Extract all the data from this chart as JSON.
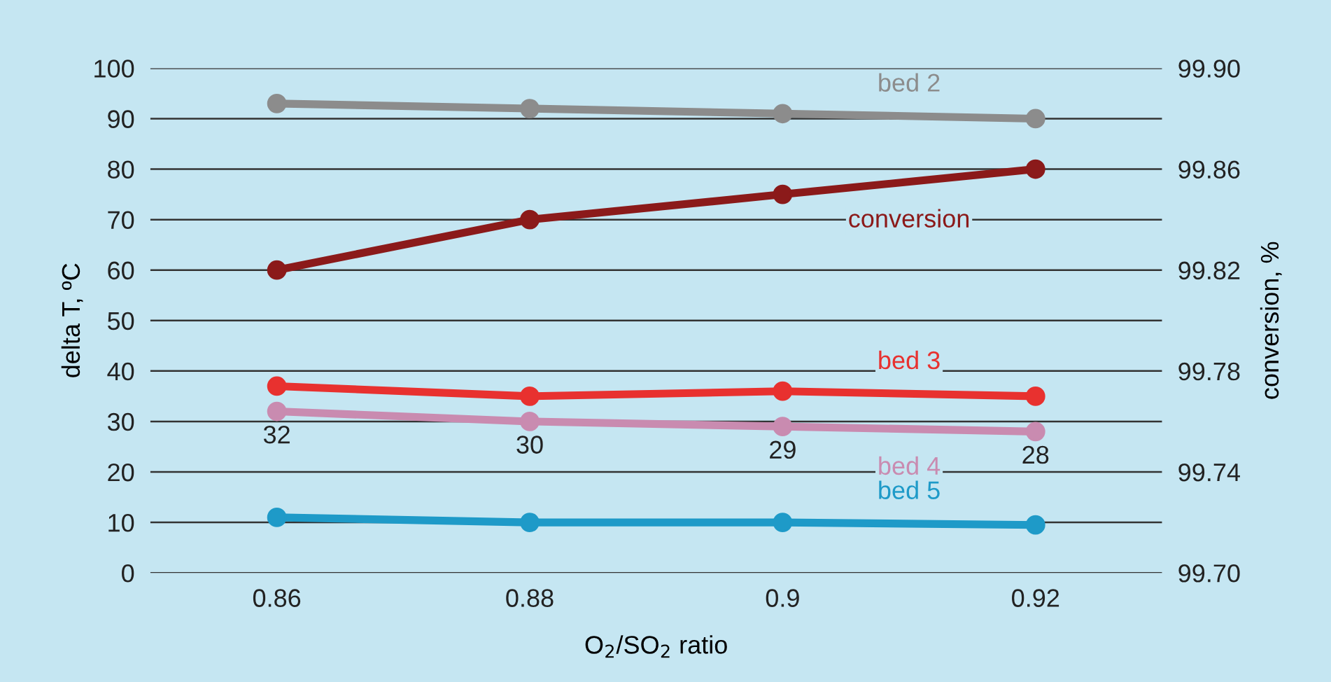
{
  "chart_data": {
    "type": "line",
    "xlabel": "O$_{2}$/SO$_{2}$ ratio",
    "ylabel": "delta T, ºC",
    "y2label": "conversion, %",
    "x": [
      0.86,
      0.88,
      0.9,
      0.92
    ],
    "xlim": [
      0.85,
      0.93
    ],
    "xticks": [
      0.86,
      0.88,
      0.9,
      0.92
    ],
    "ylim": [
      0,
      100
    ],
    "yticks": [
      0,
      10,
      20,
      30,
      40,
      50,
      60,
      70,
      80,
      90,
      100
    ],
    "y2lim": [
      99.7,
      99.9
    ],
    "y2ticks": [
      {
        "value": 99.7,
        "label": "99.70"
      },
      {
        "value": 99.74,
        "label": "99.74"
      },
      {
        "value": 99.78,
        "label": "99.78"
      },
      {
        "value": 99.82,
        "label": "99.82"
      },
      {
        "value": 99.86,
        "label": "99.86"
      },
      {
        "value": 99.9,
        "label": "99.90"
      }
    ],
    "grid": "y",
    "marker": "circle",
    "line_style": "solid",
    "legend": false,
    "series": [
      {
        "name": "bed 2",
        "color": "#8c8c8c",
        "values": [
          93,
          92,
          91,
          90
        ]
      },
      {
        "name": "conversion",
        "color": "#8b1a1a",
        "axis": "y2",
        "values": [
          99.82,
          99.84,
          99.85,
          99.86
        ]
      },
      {
        "name": "bed 3",
        "color": "#e8312f",
        "values": [
          37,
          35,
          36,
          35
        ]
      },
      {
        "name": "bed 4",
        "color": "#c98bb0",
        "values": [
          32,
          30,
          29,
          28
        ],
        "value_labels": [
          "32",
          "30",
          "29",
          "28"
        ]
      },
      {
        "name": "bed 5",
        "color": "#1e9ac8",
        "values": [
          11,
          10,
          10,
          9.5
        ]
      }
    ]
  }
}
